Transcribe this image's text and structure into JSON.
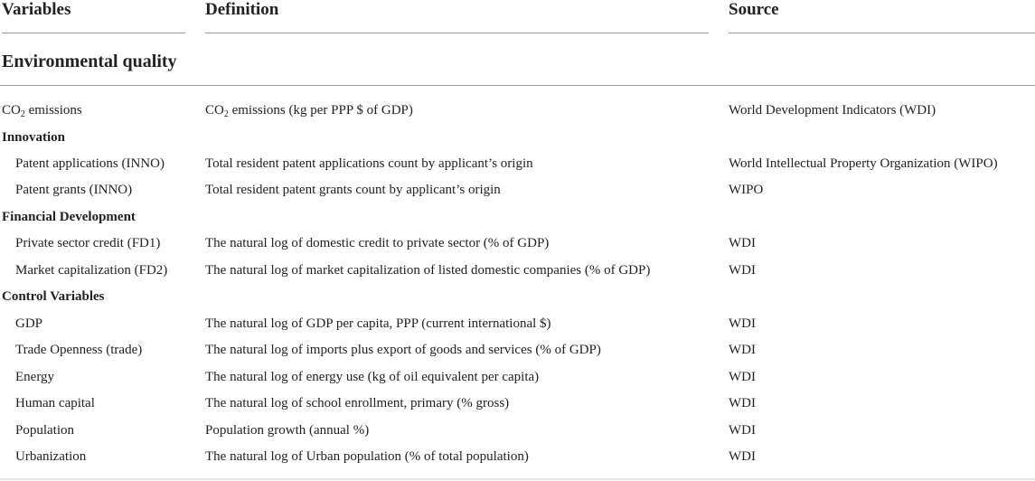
{
  "header": {
    "variables": "Variables",
    "definition": "Definition",
    "source": "Source"
  },
  "section": {
    "title": "Environmental quality"
  },
  "co2_row": {
    "variable_pre": "CO",
    "variable_sub": "2",
    "variable_post": " emissions",
    "definition_pre": "CO",
    "definition_sub": "2",
    "definition_post": " emissions (kg per PPP $ of GDP)",
    "source": "World Development Indicators (WDI)"
  },
  "groups": {
    "innovation": {
      "label": "Innovation",
      "rows": [
        {
          "variable": "Patent applications (INNO)",
          "definition": "Total resident patent applications count by applicant’s origin",
          "source": "World Intellectual Property Organization (WIPO)"
        },
        {
          "variable": "Patent grants (INNO)",
          "definition": "Total resident patent grants count by applicant’s origin",
          "source": "WIPO"
        }
      ]
    },
    "financial": {
      "label": "Financial Development",
      "rows": [
        {
          "variable": "Private sector credit (FD1)",
          "definition": "The natural log of domestic credit to private sector (% of GDP)",
          "source": "WDI"
        },
        {
          "variable": "Market capitalization (FD2)",
          "definition": "The natural log of market capitalization of listed domestic companies (% of GDP)",
          "source": "WDI"
        }
      ]
    },
    "control": {
      "label": "Control Variables",
      "rows": [
        {
          "variable": "GDP",
          "definition": "The natural log of GDP per capita, PPP (current international $)",
          "source": "WDI"
        },
        {
          "variable": "Trade Openness (trade)",
          "definition": "The natural log of imports plus export of goods and services (% of GDP)",
          "source": "WDI"
        },
        {
          "variable": "Energy",
          "definition": "The natural log of energy use (kg of oil equivalent per capita)",
          "source": "WDI"
        },
        {
          "variable": "Human capital",
          "definition": "The natural log of school enrollment, primary (% gross)",
          "source": "WDI"
        },
        {
          "variable": "Population",
          "definition": "Population growth (annual %)",
          "source": "WDI"
        },
        {
          "variable": "Urbanization",
          "definition": "The natural log of Urban population (% of total population)",
          "source": "WDI"
        }
      ]
    }
  }
}
